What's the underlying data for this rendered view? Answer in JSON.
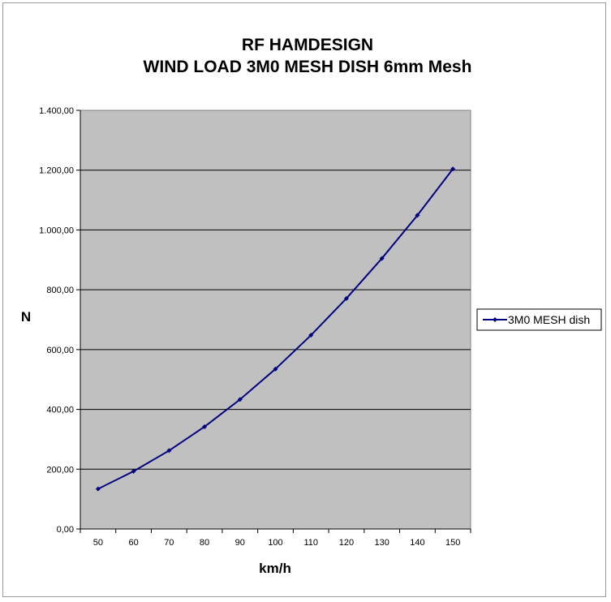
{
  "chart_data": {
    "type": "line",
    "title_line1": "RF HAMDESIGN",
    "title_line2": "WIND LOAD 3M0 MESH DISH 6mm Mesh",
    "xlabel": "km/h",
    "ylabel": "N",
    "categories": [
      "50",
      "60",
      "70",
      "80",
      "90",
      "100",
      "110",
      "120",
      "130",
      "140",
      "150"
    ],
    "yticks": [
      "0,00",
      "200,00",
      "400,00",
      "600,00",
      "800,00",
      "1.000,00",
      "1.200,00",
      "1.400,00"
    ],
    "ylim": [
      0,
      1400
    ],
    "grid": true,
    "legend_position": "right",
    "series": [
      {
        "name": "3M0 MESH dish",
        "color": "#000080",
        "values": [
          134,
          193,
          262,
          342,
          433,
          535,
          648,
          771,
          905,
          1049,
          1204
        ]
      }
    ],
    "plot_background": "#c0c0c0"
  }
}
